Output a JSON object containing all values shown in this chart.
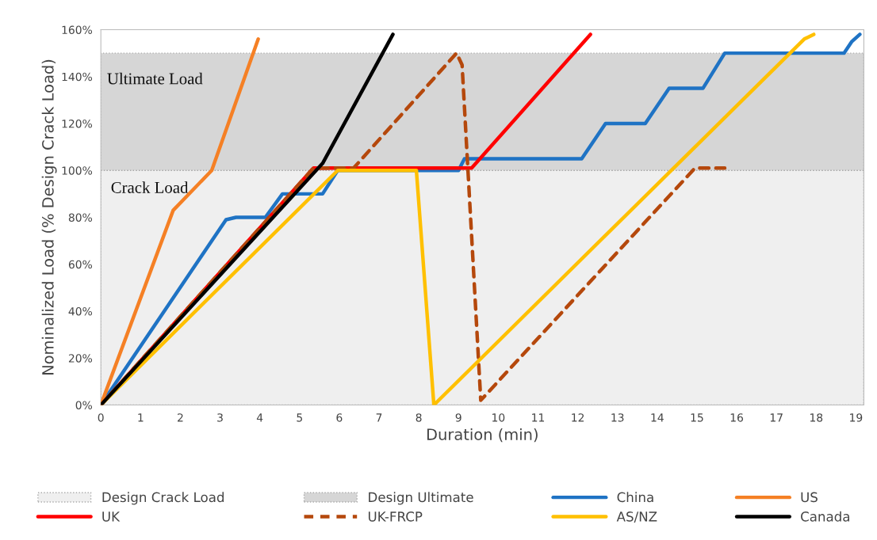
{
  "chart_data": {
    "type": "line",
    "xlabel": "Duration (min)",
    "ylabel": "Nominalized Load (% Design Crack Load)",
    "xlim": [
      0,
      19.2
    ],
    "xticks": [
      0,
      1,
      2,
      3,
      4,
      5,
      6,
      7,
      8,
      9,
      10,
      11,
      12,
      13,
      14,
      15,
      16,
      17,
      18,
      19
    ],
    "ylim": [
      0,
      160
    ],
    "yticks": [
      {
        "value": 0,
        "label": "0%"
      },
      {
        "value": 20,
        "label": "20%"
      },
      {
        "value": 40,
        "label": "40%"
      },
      {
        "value": 60,
        "label": "60%"
      },
      {
        "value": 80,
        "label": "80%"
      },
      {
        "value": 100,
        "label": "100%"
      },
      {
        "value": 120,
        "label": "120%"
      },
      {
        "value": 140,
        "label": "140%"
      },
      {
        "value": 160,
        "label": "160%"
      }
    ],
    "grid": false,
    "legend": "bottom",
    "marker": "none",
    "bands": [
      {
        "axis": "y",
        "from": 0,
        "to": 100,
        "label": "Design Crack Load",
        "color": "#efefef"
      },
      {
        "axis": "y",
        "from": 100,
        "to": 150,
        "label": "Design Ultimate",
        "color": "#d6d6d6"
      }
    ],
    "annotations": [
      "Ultimate Load",
      "Crack Load"
    ],
    "series": [
      {
        "name": "China",
        "color": "#1f73c4",
        "x": [
          0,
          3.15,
          3.4,
          4.14,
          4.57,
          5.58,
          5.96,
          9.0,
          9.15,
          12.1,
          12.7,
          13.7,
          14.3,
          15.15,
          15.7,
          18.7,
          18.9,
          19.1
        ],
        "values": [
          0,
          79,
          80,
          80,
          90,
          90,
          100,
          100,
          105,
          105,
          120,
          120,
          135,
          135,
          150,
          150,
          155,
          158
        ]
      },
      {
        "name": "US",
        "color": "#f58025",
        "x": [
          0,
          1.82,
          2.79,
          3.96
        ],
        "values": [
          0,
          83,
          100,
          156
        ]
      },
      {
        "name": "UK",
        "color": "#ff0000",
        "x": [
          0,
          5.35,
          9.33,
          12.32
        ],
        "values": [
          0,
          101,
          101,
          158
        ]
      },
      {
        "name": "UK-FRCP",
        "color": "#b5480c",
        "line_style": "dashed",
        "x": [
          0,
          5.35,
          6.36,
          8.95,
          9.09,
          9.56,
          14.95,
          15.7
        ],
        "values": [
          0,
          101,
          101,
          150,
          145,
          2,
          101,
          101
        ]
      },
      {
        "name": "AS/NZ",
        "color": "#ffc000",
        "x": [
          0,
          5.96,
          7.94,
          8.38,
          17.7,
          17.94
        ],
        "values": [
          0,
          100,
          100,
          0,
          156,
          158
        ]
      },
      {
        "name": "Canada",
        "color": "#000000",
        "x": [
          0,
          5.58,
          7.35
        ],
        "values": [
          0,
          103,
          158
        ]
      }
    ]
  }
}
